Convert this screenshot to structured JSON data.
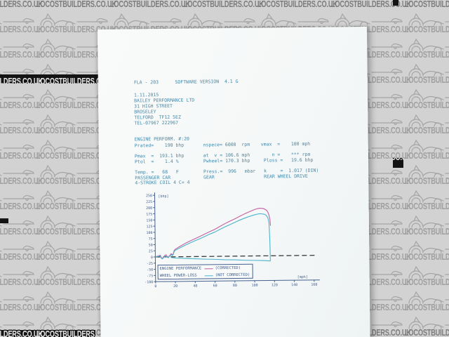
{
  "watermark": {
    "text": "LOCOSTBUILDERS.CO.UK"
  },
  "document": {
    "header": "FLA - 203      SOFTWARE VERSION  4.1 G",
    "address_lines": [
      "1.11.2015",
      "BAILEY PERFORMANCE LTD",
      "31 HIGH STREET",
      "BROSELEY",
      "TELFORD  TF12 5EZ",
      "TEL-07967 222967"
    ],
    "section_title": "ENGINE PERFORM. #:20",
    "param_lines": [
      "Prated=    190 bhp       nspece= 6000  rpm    vmax  =    100 mph",
      "",
      "Pmax  =  193.1 bhp       at  v = 106.6 mph        n =    *** rpm",
      "Ptol  =    1.4 %         Pwheel= 170.3 bhp     Ploss =   19.6 bhp",
      "",
      "Temp. =   68   F         Press.=  996   mbar   k     =  1.017 (DIN)",
      "PASSENGER CAR            GEAR                  REAR WHEEL DRIVE",
      "4-STROKE COIL 4 C= 4"
    ]
  },
  "chart_data": {
    "type": "line",
    "title": "",
    "xlabel": "[mph]",
    "ylabel": "[bhp]",
    "xlim": [
      0,
      160
    ],
    "ylim": [
      -100,
      250
    ],
    "xticks": [
      0,
      20,
      40,
      60,
      80,
      100,
      120,
      140,
      160
    ],
    "yticks": [
      250,
      225,
      200,
      175,
      150,
      125,
      100,
      75,
      50,
      25,
      0,
      -25,
      -50,
      -75,
      -100
    ],
    "grid": false,
    "zero_line": "dashed",
    "series": [
      {
        "name": "ENGINE PERFORMANCE (CORRECTED)",
        "color": "#c35f9f",
        "points": [
          [
            0,
            1
          ],
          [
            3,
            4
          ],
          [
            5,
            7
          ],
          [
            6,
            -3
          ],
          [
            7,
            -6
          ],
          [
            8,
            -2
          ],
          [
            10,
            7
          ],
          [
            11,
            8
          ],
          [
            12,
            1
          ],
          [
            13,
            -2
          ],
          [
            14,
            3
          ],
          [
            15,
            7
          ],
          [
            16,
            13
          ],
          [
            17,
            8
          ],
          [
            18,
            11
          ],
          [
            19,
            24
          ],
          [
            20,
            30
          ],
          [
            22,
            35
          ],
          [
            25,
            42
          ],
          [
            30,
            53
          ],
          [
            35,
            63
          ],
          [
            40,
            72
          ],
          [
            45,
            81
          ],
          [
            50,
            91
          ],
          [
            55,
            100
          ],
          [
            60,
            109
          ],
          [
            65,
            120
          ],
          [
            70,
            131
          ],
          [
            75,
            141
          ],
          [
            80,
            150
          ],
          [
            85,
            160
          ],
          [
            90,
            170
          ],
          [
            95,
            179
          ],
          [
            100,
            187
          ],
          [
            103,
            191
          ],
          [
            106,
            193
          ],
          [
            109,
            192
          ],
          [
            111,
            189
          ],
          [
            113,
            183
          ],
          [
            114,
            176
          ],
          [
            115,
            166
          ],
          [
            116,
            146
          ],
          [
            116.5,
            122
          ]
        ]
      },
      {
        "name": "WHEEL POWER (NOT CORRECTED)",
        "color": "#4ab3cd",
        "points": [
          [
            0,
            0
          ],
          [
            3,
            2
          ],
          [
            5,
            4
          ],
          [
            6,
            -5
          ],
          [
            7,
            -8
          ],
          [
            8,
            -4
          ],
          [
            10,
            4
          ],
          [
            12,
            -1
          ],
          [
            13,
            -4
          ],
          [
            14,
            1
          ],
          [
            15,
            4
          ],
          [
            16,
            9
          ],
          [
            17,
            5
          ],
          [
            18,
            8
          ],
          [
            19,
            20
          ],
          [
            20,
            26
          ],
          [
            25,
            36
          ],
          [
            30,
            46
          ],
          [
            35,
            55
          ],
          [
            40,
            64
          ],
          [
            45,
            72
          ],
          [
            50,
            81
          ],
          [
            55,
            90
          ],
          [
            60,
            98
          ],
          [
            65,
            108
          ],
          [
            70,
            118
          ],
          [
            75,
            127
          ],
          [
            80,
            136
          ],
          [
            85,
            145
          ],
          [
            90,
            153
          ],
          [
            95,
            160
          ],
          [
            100,
            166
          ],
          [
            104,
            170
          ],
          [
            107,
            171
          ],
          [
            110,
            169
          ],
          [
            112,
            165
          ],
          [
            113,
            160
          ],
          [
            114,
            152
          ],
          [
            115,
            133
          ],
          [
            115.7,
            60
          ],
          [
            116,
            -21
          ]
        ]
      },
      {
        "name": "POWER LOSS (NOT CORRECTED)",
        "color": "#4ab3cd",
        "points": [
          [
            16,
            -3
          ],
          [
            20,
            -5
          ],
          [
            30,
            -7
          ],
          [
            40,
            -9
          ],
          [
            50,
            -11
          ],
          [
            60,
            -12
          ],
          [
            70,
            -14
          ],
          [
            80,
            -15
          ],
          [
            90,
            -17
          ],
          [
            100,
            -18
          ],
          [
            108,
            -19
          ],
          [
            116,
            -21
          ]
        ]
      }
    ],
    "legend": {
      "rows": [
        {
          "label": "ENGINE PERFORMANCE",
          "qualifier": "(CORRECTED)",
          "color": "#c35f9f"
        },
        {
          "label": "WHEEL POWER-LOSS",
          "qualifier": "(NOT CORRECTED)",
          "color": "#4ab3cd"
        }
      ]
    }
  }
}
